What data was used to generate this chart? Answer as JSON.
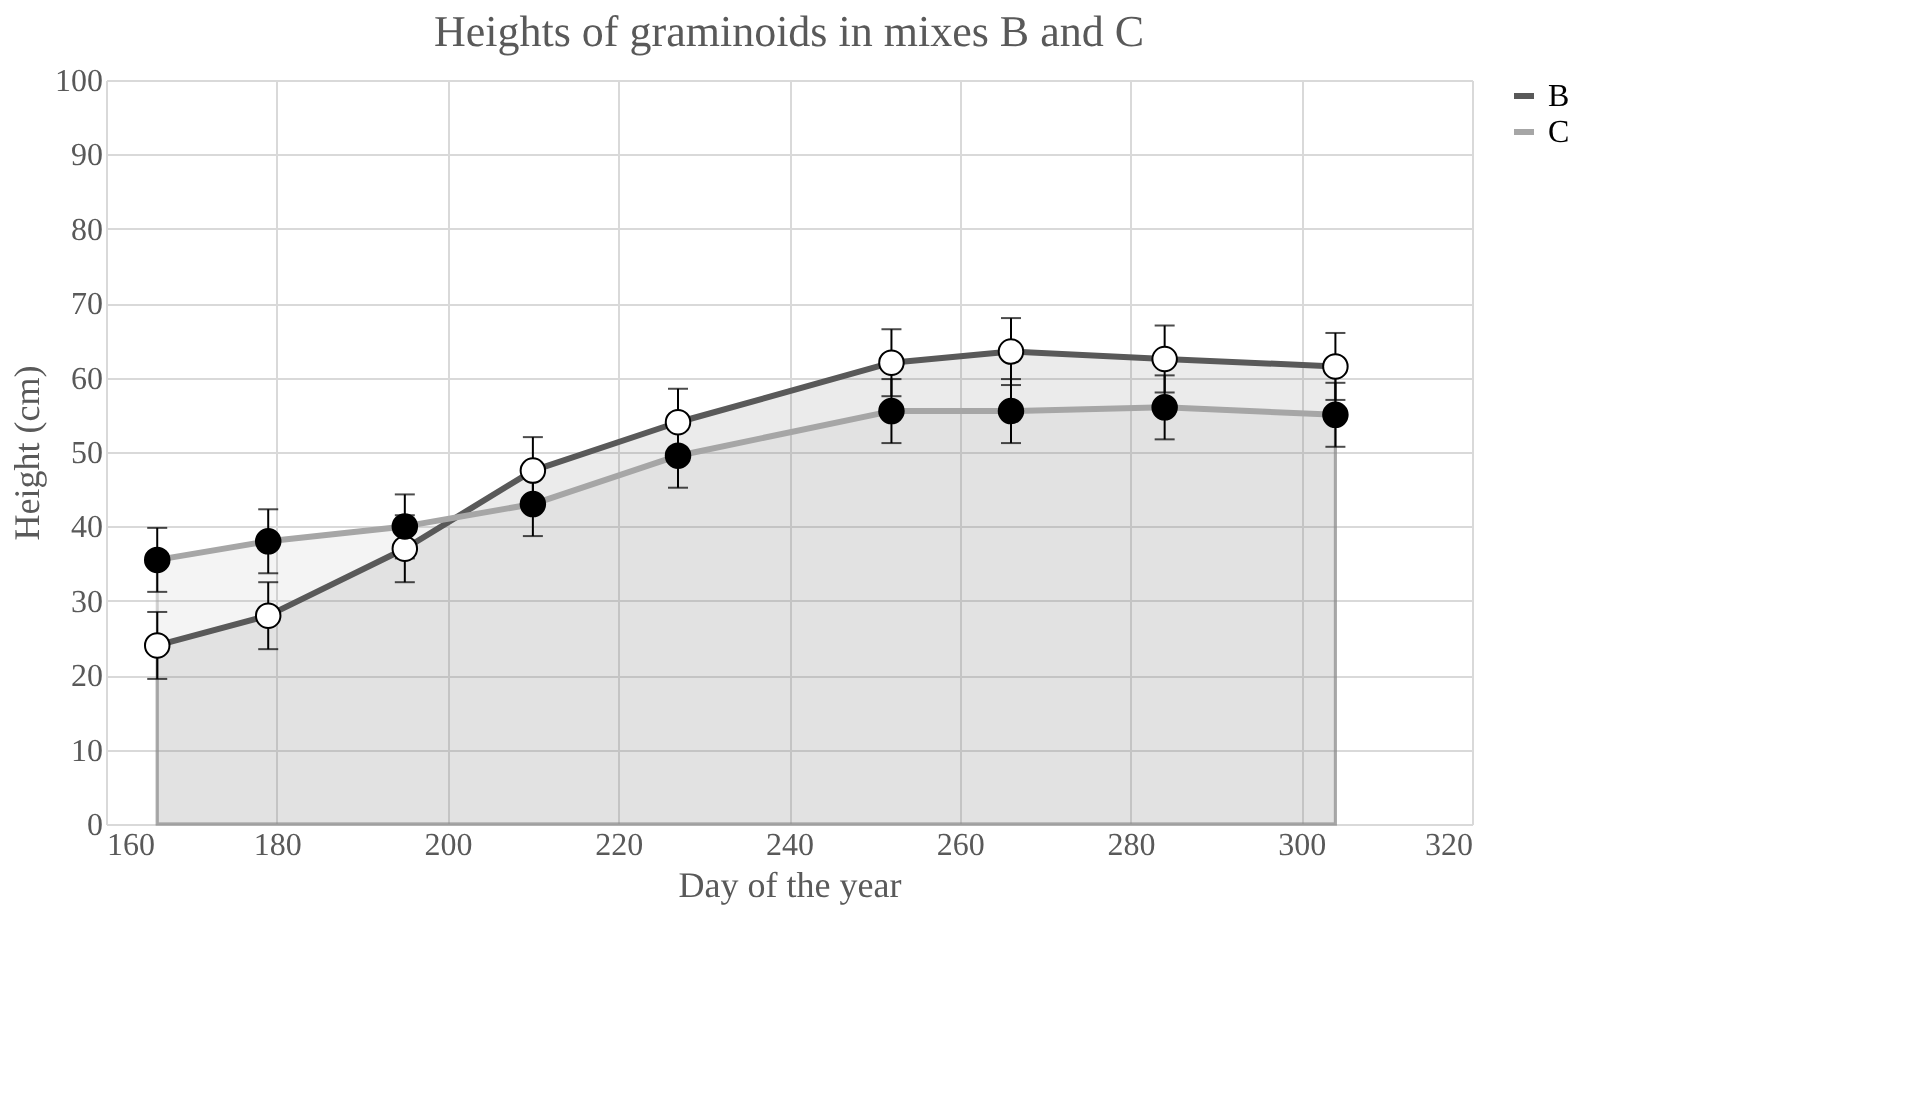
{
  "chart_data": {
    "type": "area",
    "title": "Heights of graminoids in mixes B and C",
    "xlabel": "Day of the year",
    "ylabel": "Height (cm)",
    "xlim": [
      160,
      320
    ],
    "xticks": [
      160,
      180,
      200,
      220,
      240,
      260,
      280,
      300,
      320
    ],
    "ylim": [
      0,
      100
    ],
    "yticks": [
      0,
      10,
      20,
      30,
      40,
      50,
      60,
      70,
      80,
      90,
      100
    ],
    "grid": true,
    "legend": "right",
    "marker": "circle",
    "line_style": "solid",
    "series": [
      {
        "name": "B",
        "color": "#595959",
        "x": [
          166,
          179,
          195,
          210,
          227,
          252,
          266,
          284,
          304
        ],
        "values": [
          24,
          28,
          37,
          47.5,
          54,
          62,
          63.5,
          62.5,
          61.5
        ],
        "errors": [
          4.5,
          4.5,
          4.5,
          4.5,
          4.5,
          4.5,
          4.5,
          4.5,
          4.5
        ]
      },
      {
        "name": "C",
        "color": "#a6a6a6",
        "x": [
          166,
          179,
          195,
          210,
          227,
          252,
          266,
          284,
          304
        ],
        "values": [
          35.5,
          38,
          40,
          43,
          49.5,
          55.5,
          55.5,
          56,
          55
        ],
        "errors": [
          4.3,
          4.3,
          4.3,
          4.3,
          4.3,
          4.3,
          4.3,
          4.3,
          4.3
        ]
      }
    ]
  }
}
